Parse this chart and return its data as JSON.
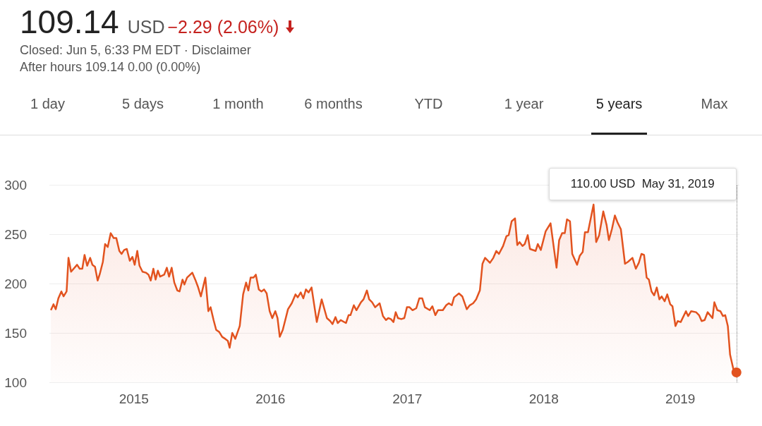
{
  "chart_data": {
    "type": "area",
    "title": "109.14",
    "annotations": [
      "USD",
      "−2.29 (2.06%)",
      "Closed: Jun 5, 6:33 PM EDT · Disclaimer",
      "After hours 109.14 0.00 (0.00%)",
      "110.00 USD  May 31, 2019",
      "1 day",
      "5 days",
      "1 month",
      "6 months",
      "YTD",
      "1 year",
      "5 years",
      "Max"
    ],
    "x": [
      "2014-05-24",
      "2014-05-31",
      "2014-06-06",
      "2014-06-13",
      "2014-06-21",
      "2014-06-27",
      "2014-07-05",
      "2014-07-10",
      "2014-07-17",
      "2014-08-02",
      "2014-08-09",
      "2014-08-16",
      "2014-08-22",
      "2014-08-29",
      "2014-09-06",
      "2014-09-12",
      "2014-09-19",
      "2014-09-26",
      "2014-10-02",
      "2014-10-10",
      "2014-10-16",
      "2014-10-23",
      "2014-10-31",
      "2014-11-08",
      "2014-11-15",
      "2014-11-23",
      "2014-11-29",
      "2014-12-06",
      "2014-12-13",
      "2014-12-21",
      "2014-12-28",
      "2015-01-03",
      "2015-01-10",
      "2015-01-16",
      "2015-01-24",
      "2015-02-02",
      "2015-02-09",
      "2015-02-15",
      "2015-02-22",
      "2015-02-28",
      "2015-03-06",
      "2015-03-12",
      "2015-03-23",
      "2015-03-30",
      "2015-04-05",
      "2015-04-12",
      "2015-04-19",
      "2015-04-27",
      "2015-05-03",
      "2015-05-11",
      "2015-05-16",
      "2015-05-23",
      "2015-06-06",
      "2015-06-14",
      "2015-06-21",
      "2015-06-29",
      "2015-07-11",
      "2015-07-19",
      "2015-07-25",
      "2015-08-02",
      "2015-08-09",
      "2015-08-17",
      "2015-08-25",
      "2015-09-02",
      "2015-09-09",
      "2015-09-14",
      "2015-09-21",
      "2015-09-29",
      "2015-10-11",
      "2015-10-20",
      "2015-10-28",
      "2015-11-03",
      "2015-11-09",
      "2015-11-17",
      "2015-11-23",
      "2015-12-01",
      "2015-12-08",
      "2015-12-15",
      "2015-12-22",
      "2015-12-30",
      "2016-01-06",
      "2016-01-14",
      "2016-01-20",
      "2016-01-26",
      "2016-02-03",
      "2016-02-11",
      "2016-02-17",
      "2016-02-27",
      "2016-03-08",
      "2016-03-14",
      "2016-03-22",
      "2016-03-29",
      "2016-04-05",
      "2016-04-12",
      "2016-04-20",
      "2016-05-04",
      "2016-05-17",
      "2016-05-31",
      "2016-06-09",
      "2016-06-15",
      "2016-06-23",
      "2016-06-29",
      "2016-07-07",
      "2016-07-21",
      "2016-07-28",
      "2016-08-02",
      "2016-08-11",
      "2016-08-18",
      "2016-08-30",
      "2016-09-06",
      "2016-09-15",
      "2016-09-21",
      "2016-09-29",
      "2016-10-07",
      "2016-10-19",
      "2016-10-28",
      "2016-11-05",
      "2016-11-11",
      "2016-11-18",
      "2016-11-25",
      "2016-12-01",
      "2016-12-07",
      "2016-12-16",
      "2016-12-24",
      "2016-12-31",
      "2017-01-07",
      "2017-01-15",
      "2017-01-25",
      "2017-02-02",
      "2017-02-10",
      "2017-02-17",
      "2017-03-02",
      "2017-03-09",
      "2017-03-17",
      "2017-03-24",
      "2017-04-06",
      "2017-04-15",
      "2017-04-22",
      "2017-04-30",
      "2017-05-06",
      "2017-05-19",
      "2017-05-28",
      "2017-06-09",
      "2017-06-17",
      "2017-06-26",
      "2017-07-04",
      "2017-07-14",
      "2017-07-21",
      "2017-07-28",
      "2017-08-10",
      "2017-08-19",
      "2017-08-27",
      "2017-09-03",
      "2017-09-14",
      "2017-09-23",
      "2017-09-29",
      "2017-10-07",
      "2017-10-16",
      "2017-10-22",
      "2017-10-28",
      "2017-11-05",
      "2017-11-11",
      "2017-11-19",
      "2017-11-25",
      "2017-12-10",
      "2017-12-16",
      "2017-12-24",
      "2018-01-06",
      "2018-01-19",
      "2018-02-04",
      "2018-02-11",
      "2018-02-19",
      "2018-02-26",
      "2018-03-04",
      "2018-03-12",
      "2018-03-18",
      "2018-03-31",
      "2018-04-07",
      "2018-04-15",
      "2018-04-21",
      "2018-04-29",
      "2018-05-14",
      "2018-05-21",
      "2018-05-29",
      "2018-06-09",
      "2018-06-18",
      "2018-06-24",
      "2018-07-02",
      "2018-07-10",
      "2018-07-17",
      "2018-07-26",
      "2018-08-06",
      "2018-08-14",
      "2018-08-26",
      "2018-09-04",
      "2018-09-12",
      "2018-09-19",
      "2018-09-26",
      "2018-10-03",
      "2018-10-09",
      "2018-10-16",
      "2018-10-23",
      "2018-10-30",
      "2018-11-06",
      "2018-11-12",
      "2018-11-20",
      "2018-11-27",
      "2018-12-05",
      "2018-12-11",
      "2018-12-19",
      "2018-12-25",
      "2019-01-02",
      "2019-01-16",
      "2019-01-22",
      "2019-01-30",
      "2019-02-12",
      "2019-02-20",
      "2019-02-27",
      "2019-03-07",
      "2019-03-15",
      "2019-03-28",
      "2019-04-02",
      "2019-04-10",
      "2019-04-18",
      "2019-04-25",
      "2019-05-01",
      "2019-05-08",
      "2019-05-14",
      "2019-05-23",
      "2019-05-31"
    ],
    "series": [
      {
        "color": "#e2531f",
        "values": [
          173,
          179,
          174,
          185,
          192,
          187,
          192,
          226,
          212,
          219,
          215,
          215,
          229,
          218,
          226,
          219,
          217,
          203,
          210,
          222,
          240,
          237,
          251,
          246,
          246,
          233,
          230,
          234,
          235,
          223,
          227,
          219,
          233,
          218,
          212,
          211,
          209,
          203,
          215,
          204,
          213,
          207,
          209,
          216,
          207,
          216,
          201,
          193,
          192,
          204,
          199,
          206,
          211,
          204,
          197,
          187,
          206,
          172,
          176,
          163,
          153,
          151,
          146,
          144,
          142,
          135,
          150,
          144,
          157,
          189,
          201,
          193,
          206,
          206,
          209,
          194,
          192,
          194,
          190,
          172,
          165,
          172,
          165,
          146,
          153,
          165,
          174,
          180,
          189,
          186,
          191,
          185,
          194,
          191,
          196,
          161,
          184,
          165,
          162,
          159,
          166,
          160,
          163,
          160,
          168,
          168,
          178,
          173,
          181,
          184,
          193,
          184,
          181,
          176,
          180,
          167,
          163,
          165,
          164,
          161,
          171,
          165,
          164,
          165,
          176,
          176,
          173,
          175,
          185,
          185,
          176,
          173,
          177,
          168,
          173,
          173,
          178,
          180,
          178,
          186,
          190,
          187,
          174,
          178,
          180,
          184,
          193,
          220,
          226,
          221,
          226,
          233,
          230,
          238,
          248,
          249,
          263,
          266,
          239,
          242,
          238,
          240,
          249,
          235,
          233,
          240,
          234,
          253,
          261,
          216,
          244,
          251,
          251,
          265,
          263,
          230,
          219,
          228,
          232,
          252,
          252,
          280,
          242,
          249,
          273,
          259,
          244,
          255,
          269,
          262,
          255,
          220,
          222,
          226,
          215,
          221,
          230,
          229,
          206,
          204,
          192,
          188,
          196,
          184,
          187,
          182,
          189,
          179,
          177,
          157,
          162,
          161,
          172,
          167,
          172,
          171,
          168,
          162,
          163,
          171,
          165,
          181,
          173,
          172,
          167,
          168,
          157,
          128,
          113,
          110
        ]
      }
    ],
    "xlim": [
      "2014-05-20",
      "2019-06-08"
    ],
    "xticks": [
      "2015",
      "2016",
      "2017",
      "2018",
      "2019"
    ],
    "ylim": [
      100,
      300
    ],
    "yticks": [
      100,
      150,
      200,
      250,
      300
    ],
    "grid": "y",
    "ref_lines": [
      {
        "axis": "x",
        "value": "2019-05-31",
        "line_style": "dotted",
        "color": "#777777"
      }
    ]
  }
}
